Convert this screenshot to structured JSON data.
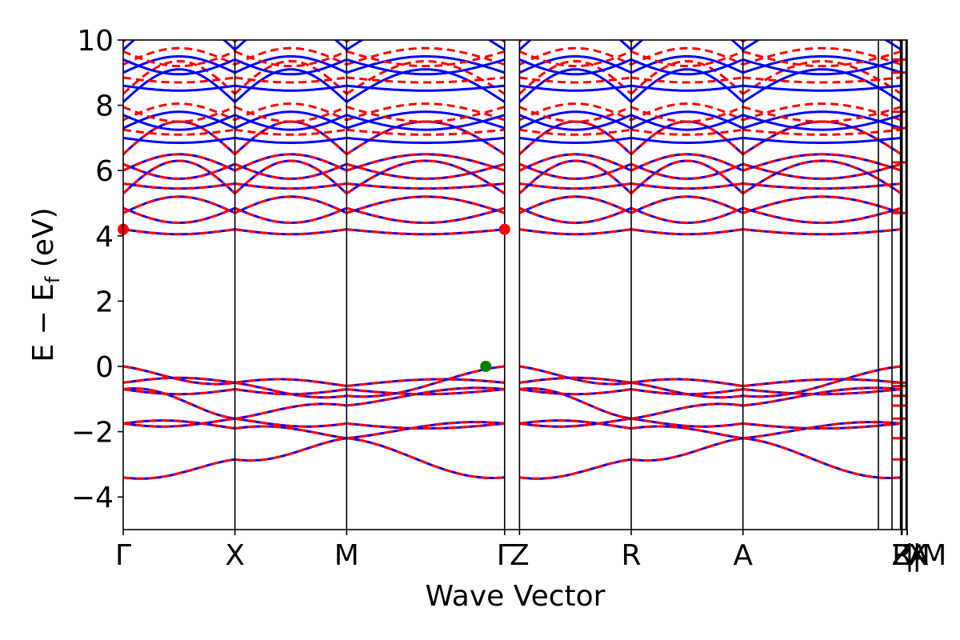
{
  "chart_data": {
    "type": "line",
    "title": "",
    "xlabel": "Wave Vector",
    "ylabel": "E − E",
    "ylabel_subscript": "f",
    "ylabel_unit": "(eV)",
    "ylim": [
      -5,
      10
    ],
    "y_ticks": [
      -4,
      -2,
      0,
      2,
      4,
      6,
      8,
      10
    ],
    "x_ticks": [
      {
        "label": "Γ",
        "pos": 0.0
      },
      {
        "label": "X",
        "pos": 0.1425
      },
      {
        "label": "M",
        "pos": 0.285
      },
      {
        "label": "Γ",
        "pos": 0.4865
      },
      {
        "label": "Z",
        "pos": 0.5055
      },
      {
        "label": "R",
        "pos": 0.648
      },
      {
        "label": "A",
        "pos": 0.7905
      },
      {
        "label": "Z",
        "pos": 0.9925
      },
      {
        "label": "R",
        "pos": 0.9935
      },
      {
        "label": "|",
        "pos": 1.003
      },
      {
        "label": "|",
        "pos": 1.0125
      },
      {
        "label": "X",
        "pos": 1.0135
      },
      {
        "label": "A",
        "pos": 1.0145
      },
      {
        "label": "M",
        "pos": 1.0345
      }
    ],
    "grid": false,
    "series": [
      {
        "name": "",
        "color": "#0000ff",
        "style": "solid"
      },
      {
        "name": "",
        "color": "#ff0000",
        "style": "dashed"
      }
    ],
    "markers": [
      {
        "label": "VBM",
        "x": 0.4625,
        "y": 0.0,
        "color": "#008000"
      },
      {
        "label": "CBM",
        "x": 0.4865,
        "y": 4.2,
        "color": "#ff0000"
      },
      {
        "label": "CBM",
        "x": 0.0,
        "y": 4.2,
        "color": "#ff0000"
      }
    ]
  }
}
